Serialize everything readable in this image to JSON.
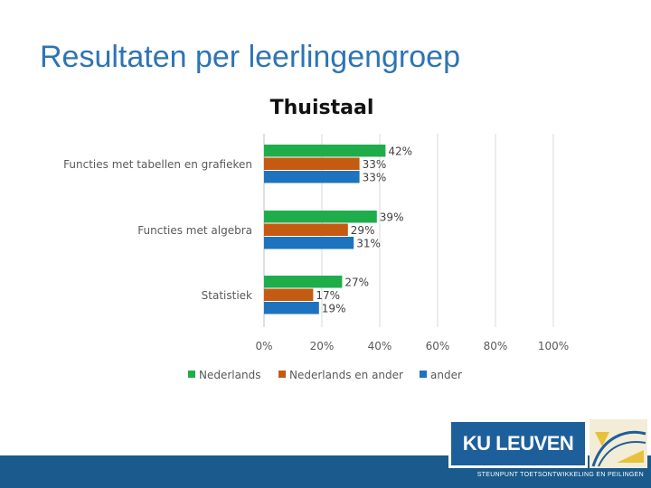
{
  "slide": {
    "title": "Resultaten per leerlingengroep"
  },
  "footer": {
    "logo_text": "KU LEUVEN",
    "org_text": "STEUNPUNT TOETSONTWIKKELING EN PEILINGEN"
  },
  "colors": {
    "title": "#2e74b5",
    "nederlands": "#1fad4c",
    "nederlands_en_ander": "#c55a11",
    "ander": "#1e73be",
    "footer": "#1a5a8c"
  },
  "chart_data": {
    "type": "bar",
    "orientation": "horizontal",
    "title": "Thuistaal",
    "categories": [
      "Functies met tabellen en grafieken",
      "Functies met algebra",
      "Statistiek"
    ],
    "series": [
      {
        "name": "Nederlands",
        "values": [
          42,
          39,
          27
        ],
        "labels": [
          "42%",
          "39%",
          "27%"
        ]
      },
      {
        "name": "Nederlands en ander",
        "values": [
          33,
          29,
          17
        ],
        "labels": [
          "33%",
          "29%",
          "17%"
        ]
      },
      {
        "name": "ander",
        "values": [
          33,
          31,
          19
        ],
        "labels": [
          "33%",
          "31%",
          "19%"
        ]
      }
    ],
    "xlim": [
      0,
      100
    ],
    "xticks": [
      "0%",
      "20%",
      "40%",
      "60%",
      "80%",
      "100%"
    ],
    "grid": true,
    "legend_position": "bottom"
  }
}
